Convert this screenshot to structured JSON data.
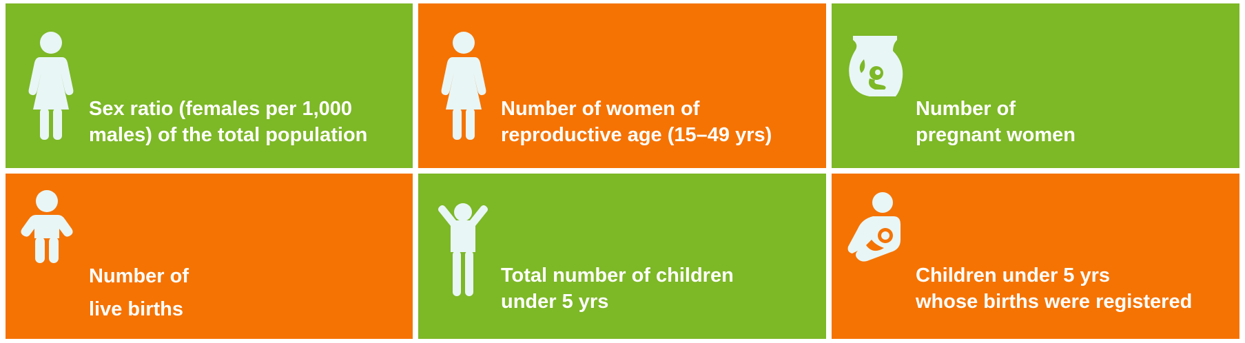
{
  "colors": {
    "green": "#7db826",
    "orange": "#f57303",
    "icon_fill": "#e8f6f6",
    "text": "#ffffff"
  },
  "tiles": [
    {
      "icon": "woman-icon",
      "color": "green",
      "lines": [
        "Sex ratio (females per 1,000",
        "males) of the total population"
      ]
    },
    {
      "icon": "woman-icon",
      "color": "orange",
      "lines": [
        "Number of women of",
        "reproductive age (15–49 yrs)"
      ]
    },
    {
      "icon": "pregnant-woman-icon",
      "color": "green",
      "lines": [
        "Number of",
        "pregnant women"
      ]
    },
    {
      "icon": "baby-icon",
      "color": "orange",
      "lines": [
        "Number of",
        "live births"
      ]
    },
    {
      "icon": "child-arms-raised-icon",
      "color": "green",
      "lines": [
        "Total number of children",
        "under 5 yrs"
      ]
    },
    {
      "icon": "mother-holding-baby-icon",
      "color": "orange",
      "lines": [
        "Children under 5 yrs",
        "whose births were registered"
      ]
    }
  ]
}
